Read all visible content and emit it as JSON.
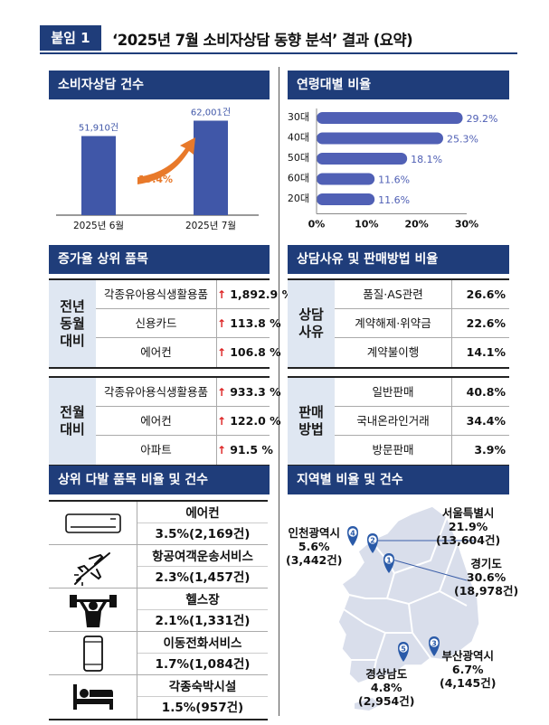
{
  "header": {
    "badge": "붙임 1",
    "title": "‘2025년 7월 소비자상담 동향 분석’ 결과 (요약)"
  },
  "counts": {
    "title": "소비자상담 건수",
    "bars": [
      {
        "label": "2025년 6월",
        "value": 51910,
        "value_label": "51,910건"
      },
      {
        "label": "2025년 7월",
        "value": 62001,
        "value_label": "62,001건"
      }
    ],
    "growth": "19.4%"
  },
  "age": {
    "title": "연령대별 비율",
    "chart_data": {
      "type": "bar",
      "orientation": "horizontal",
      "categories": [
        "30대",
        "40대",
        "50대",
        "60대",
        "20대"
      ],
      "values": [
        29.2,
        25.3,
        18.1,
        11.6,
        11.6
      ],
      "value_labels": [
        "29.2%",
        "25.3%",
        "18.1%",
        "11.6%",
        "11.6%"
      ],
      "xlim": [
        0,
        30
      ],
      "ticks": [
        "0%",
        "10%",
        "20%",
        "30%"
      ]
    }
  },
  "growth_items": {
    "title": "증가율 상위 품목",
    "groups": [
      {
        "label": "전년\n동월\n대비",
        "rows": [
          {
            "name": "각종유아용식생활용품",
            "value": "1,892.9 %"
          },
          {
            "name": "신용카드",
            "value": "113.8 %"
          },
          {
            "name": "에어컨",
            "value": "106.8 %"
          }
        ]
      },
      {
        "label": "전월\n대비",
        "rows": [
          {
            "name": "각종유아용식생활용품",
            "value": "933.3 %"
          },
          {
            "name": "에어컨",
            "value": "122.0 %"
          },
          {
            "name": "아파트",
            "value": "91.5 %"
          }
        ]
      }
    ]
  },
  "reasons": {
    "title": "상담사유 및 판매방법 비율",
    "groups": [
      {
        "label": "상담\n사유",
        "rows": [
          {
            "name": "품질·AS관련",
            "value": "26.6%"
          },
          {
            "name": "계약해제·위약금",
            "value": "22.6%"
          },
          {
            "name": "계약불이행",
            "value": "14.1%"
          }
        ]
      },
      {
        "label": "판매\n방법",
        "rows": [
          {
            "name": "일반판매",
            "value": "40.8%"
          },
          {
            "name": "국내온라인거래",
            "value": "34.4%"
          },
          {
            "name": "방문판매",
            "value": "3.9%"
          }
        ]
      }
    ]
  },
  "top_items": {
    "title": "상위 다발 품목 비율 및 건수",
    "items": [
      {
        "icon": "air-conditioner-icon",
        "name": "에어컨",
        "value": "3.5%(2,169건)"
      },
      {
        "icon": "airplane-icon",
        "name": "항공여객운송서비스",
        "value": "2.3%(1,457건)"
      },
      {
        "icon": "gym-icon",
        "name": "헬스장",
        "value": "2.1%(1,331건)"
      },
      {
        "icon": "smartphone-icon",
        "name": "이동전화서비스",
        "value": "1.7%(1,084건)"
      },
      {
        "icon": "bed-icon",
        "name": "각종숙박시설",
        "value": "1.5%(957건)"
      }
    ]
  },
  "region": {
    "title": "지역별 비율 및 건수",
    "pins": [
      {
        "rank": "1",
        "name": "경기도",
        "pct": "30.6%",
        "count": "(18,978건)"
      },
      {
        "rank": "2",
        "name": "서울특별시",
        "pct": "21.9%",
        "count": "(13,604건)"
      },
      {
        "rank": "3",
        "name": "부산광역시",
        "pct": "6.7%",
        "count": "(4,145건)"
      },
      {
        "rank": "4",
        "name": "인천광역시",
        "pct": "5.6%",
        "count": "(3,442건)"
      },
      {
        "rank": "5",
        "name": "경상남도",
        "pct": "4.8%",
        "count": "(2,954건)"
      }
    ]
  },
  "colors": {
    "navy": "#1f3d7a",
    "bar": "#4057a8",
    "hbar": "#5060b5",
    "arrow": "#e8792a",
    "group_bg": "#dfe7f2",
    "pin": "#2a5aa8"
  }
}
